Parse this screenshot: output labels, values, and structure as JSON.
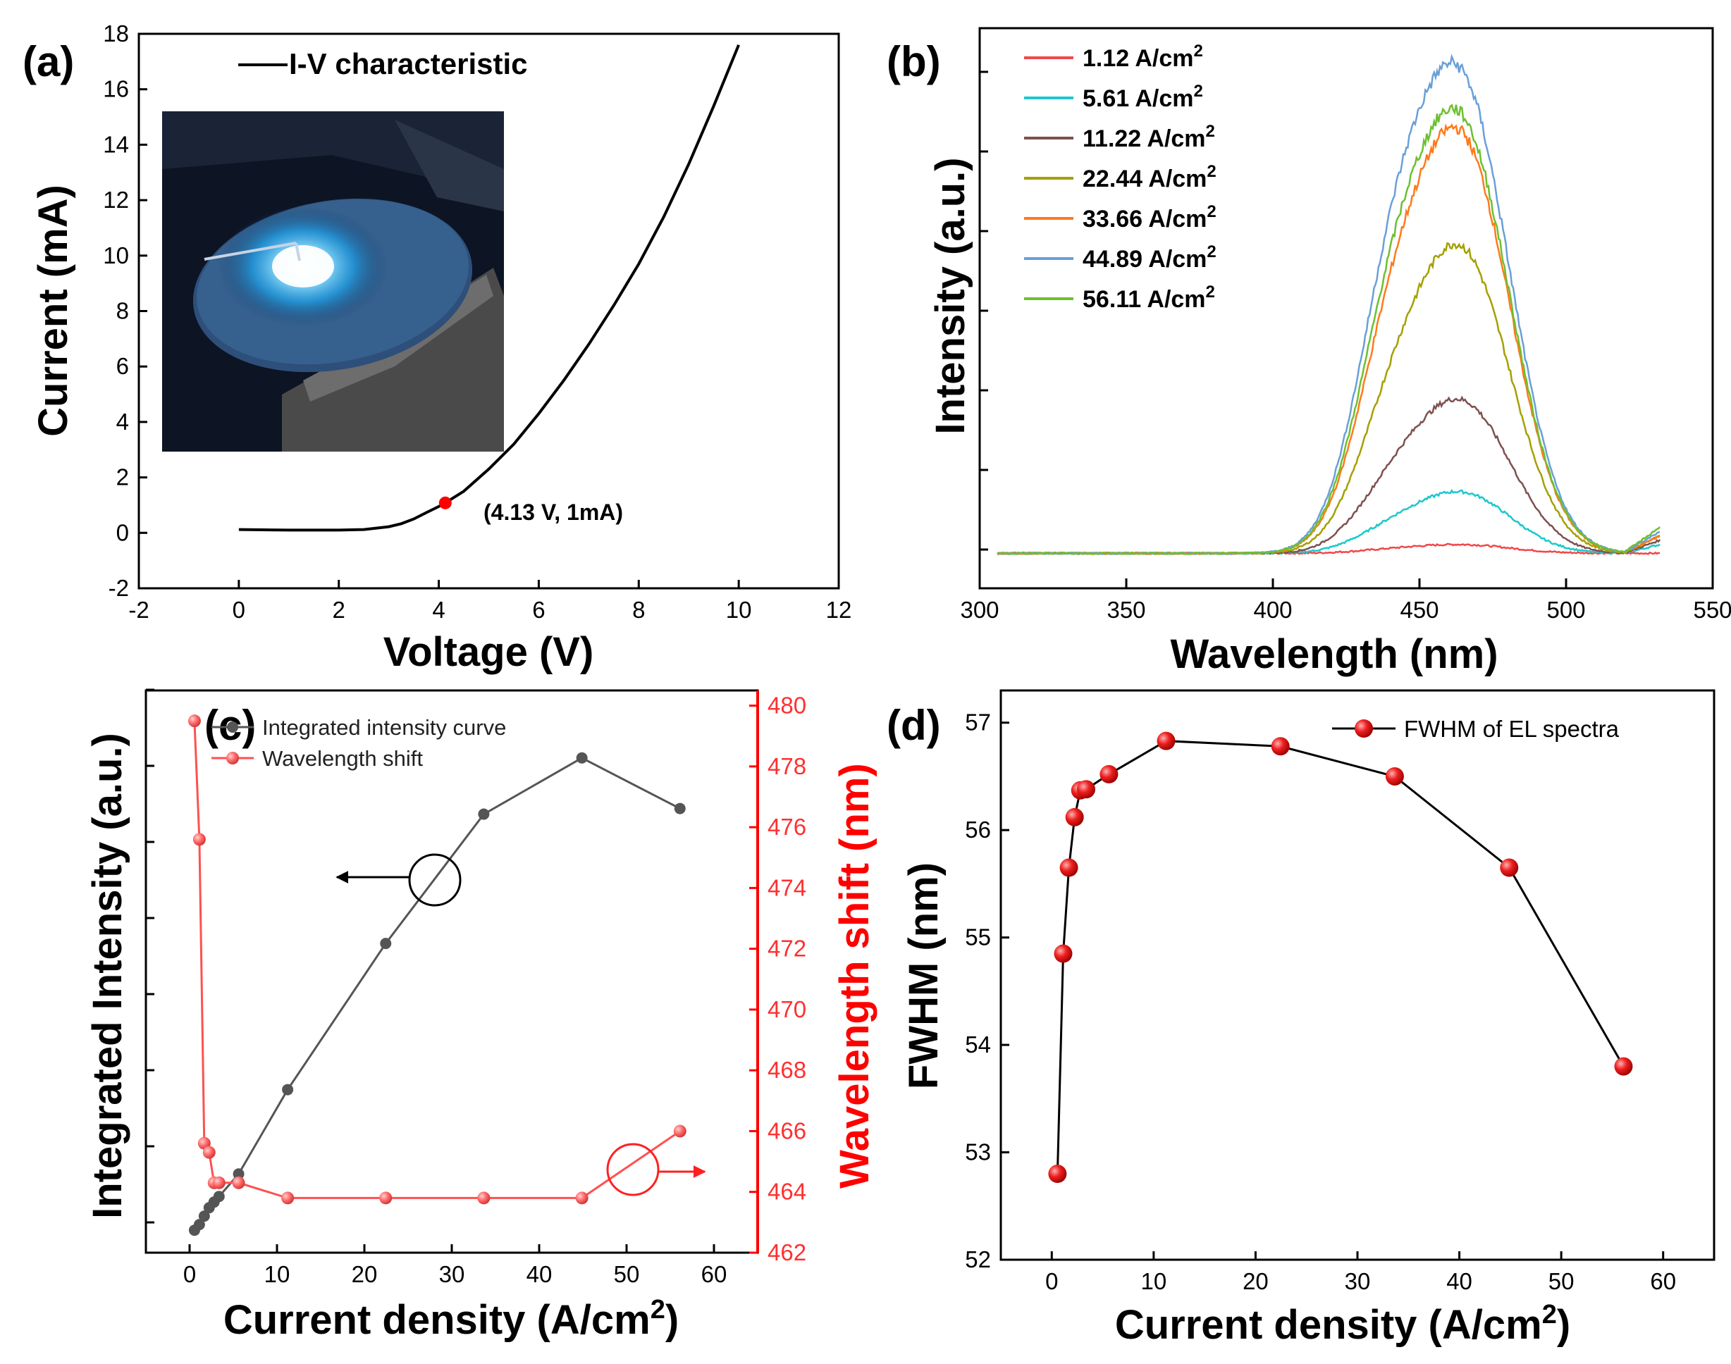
{
  "chart_data": [
    {
      "id": "a",
      "type": "line",
      "panel_label": "(a)",
      "xlabel": "Voltage (V)",
      "ylabel": "Current (mA)",
      "xlim": [
        -2,
        12
      ],
      "ylim": [
        -2,
        18
      ],
      "xticks": [
        -2,
        0,
        2,
        4,
        6,
        8,
        10,
        12
      ],
      "yticks": [
        -2,
        0,
        2,
        4,
        6,
        8,
        10,
        12,
        14,
        16,
        18
      ],
      "legend": [
        "I-V characteristic"
      ],
      "series": [
        {
          "name": "I-V characteristic",
          "color": "#000000",
          "x": [
            0,
            0.5,
            1,
            1.5,
            2,
            2.5,
            3,
            3.25,
            3.5,
            3.75,
            4,
            4.13,
            4.5,
            5,
            5.5,
            6,
            6.5,
            7,
            7.5,
            8,
            8.5,
            9,
            9.5,
            10
          ],
          "y": [
            0.12,
            0.11,
            0.1,
            0.1,
            0.1,
            0.12,
            0.22,
            0.33,
            0.5,
            0.73,
            0.95,
            1.08,
            1.5,
            2.3,
            3.2,
            4.3,
            5.5,
            6.8,
            8.2,
            9.7,
            11.4,
            13.3,
            15.4,
            17.6
          ]
        }
      ],
      "highlight_point": {
        "x": 4.13,
        "y": 1.08,
        "label": "(4.13 V, 1mA)",
        "color": "#ff0000"
      },
      "inset": "photo of glowing blue LED on wafer"
    },
    {
      "id": "b",
      "type": "line",
      "panel_label": "(b)",
      "xlabel": "Wavelength (nm)",
      "ylabel": "Intensity (a.u.)",
      "xlim": [
        300,
        550
      ],
      "xticks": [
        300,
        350,
        400,
        450,
        500,
        550
      ],
      "ylim": [
        -0.08,
        1.2
      ],
      "legend_unit_base": "A/cm",
      "legend_unit_sup": "2",
      "series": [
        {
          "name": "1.12",
          "color": "#f0484b",
          "peak": 0.02,
          "shoulder": 0.3,
          "tail": 0.0
        },
        {
          "name": "5.61",
          "color": "#1cc8cc",
          "peak": 0.14,
          "shoulder": 0.3,
          "tail": 0.02
        },
        {
          "name": "11.22",
          "color": "#7e5050",
          "peak": 0.35,
          "shoulder": 0.32,
          "tail": 0.03
        },
        {
          "name": "22.44",
          "color": "#a4a000",
          "peak": 0.7,
          "shoulder": 0.35,
          "tail": 0.04
        },
        {
          "name": "33.66",
          "color": "#ff7a1a",
          "peak": 0.96,
          "shoulder": 0.4,
          "tail": 0.04
        },
        {
          "name": "44.89",
          "color": "#6a9fd8",
          "peak": 1.1,
          "shoulder": 0.45,
          "tail": 0.05
        },
        {
          "name": "56.11",
          "color": "#6cc030",
          "peak": 1.0,
          "shoulder": 0.43,
          "tail": 0.06
        }
      ]
    },
    {
      "id": "c",
      "type": "line",
      "panel_label": "(c)",
      "xlabel_base": "Current density (A/cm",
      "xlabel_sup": "2",
      "xlabel_end": ")",
      "ylabel_left": "Integrated Intensity (a.u.)",
      "ylabel_right": "Wavelength shift (nm)",
      "xlim": [
        -5,
        65
      ],
      "xticks": [
        0,
        10,
        20,
        30,
        40,
        50,
        60
      ],
      "ylim_left": [
        0,
        1
      ],
      "ylim_right": [
        462,
        480.5
      ],
      "yticks_right": [
        462,
        464,
        466,
        468,
        470,
        472,
        474,
        476,
        478,
        480
      ],
      "series": [
        {
          "name": "Integrated intensity curve",
          "axis": "left",
          "color": "#555555",
          "x": [
            0.56,
            1.12,
            1.68,
            2.24,
            2.8,
            3.37,
            5.61,
            11.22,
            22.44,
            33.66,
            44.89,
            56.11
          ],
          "y": [
            0.04,
            0.05,
            0.065,
            0.08,
            0.09,
            0.1,
            0.14,
            0.29,
            0.55,
            0.78,
            0.88,
            0.79
          ]
        },
        {
          "name": "Wavelength shift",
          "axis": "right",
          "color": "#ff5050",
          "x": [
            0.56,
            1.12,
            1.68,
            2.24,
            2.8,
            3.37,
            5.61,
            11.22,
            22.44,
            33.66,
            44.89,
            56.11
          ],
          "y": [
            479.5,
            475.6,
            465.6,
            465.3,
            464.3,
            464.3,
            464.3,
            463.8,
            463.8,
            463.8,
            463.8,
            466.0
          ]
        }
      ]
    },
    {
      "id": "d",
      "type": "line",
      "panel_label": "(d)",
      "xlabel_base": "Current density (A/cm",
      "xlabel_sup": "2",
      "xlabel_end": ")",
      "ylabel": "FWHM (nm)",
      "xlim": [
        -5,
        65
      ],
      "xticks": [
        0,
        10,
        20,
        30,
        40,
        50,
        60
      ],
      "ylim": [
        52,
        57.3
      ],
      "yticks": [
        52,
        53,
        54,
        55,
        56,
        57
      ],
      "series": [
        {
          "name": "FWHM of EL spectra",
          "color": "#ee1111",
          "x": [
            0.56,
            1.12,
            1.68,
            2.24,
            2.8,
            3.37,
            5.61,
            11.22,
            22.44,
            33.66,
            44.89,
            56.11
          ],
          "y": [
            52.8,
            54.85,
            55.65,
            56.12,
            56.37,
            56.38,
            56.52,
            56.83,
            56.78,
            56.5,
            55.65,
            53.8
          ]
        }
      ]
    }
  ]
}
